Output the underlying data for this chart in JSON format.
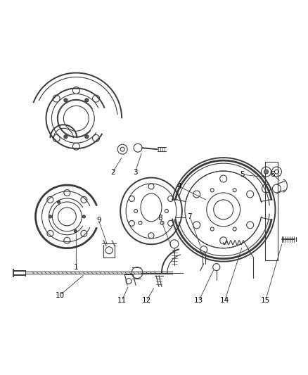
{
  "background_color": "#ffffff",
  "line_color": "#3a3a3a",
  "label_color": "#000000",
  "fig_width": 4.38,
  "fig_height": 5.33,
  "dpi": 100
}
